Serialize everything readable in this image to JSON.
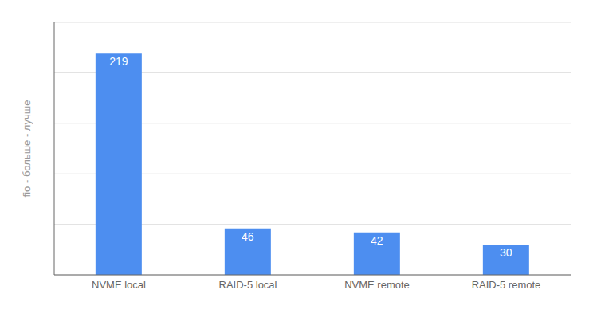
{
  "chart_data": {
    "type": "bar",
    "categories": [
      "NVME local",
      "RAID-5 local",
      "NVME remote",
      "RAID-5 remote"
    ],
    "values": [
      219,
      46,
      42,
      30
    ],
    "color": "#4d8ef0",
    "ylabel": "fio - больше - лучше",
    "ylim": [
      0,
      250
    ],
    "yticks": [
      0,
      50,
      100,
      150,
      200
    ],
    "grid": true,
    "data_labels": true,
    "tick_labels": "x"
  }
}
